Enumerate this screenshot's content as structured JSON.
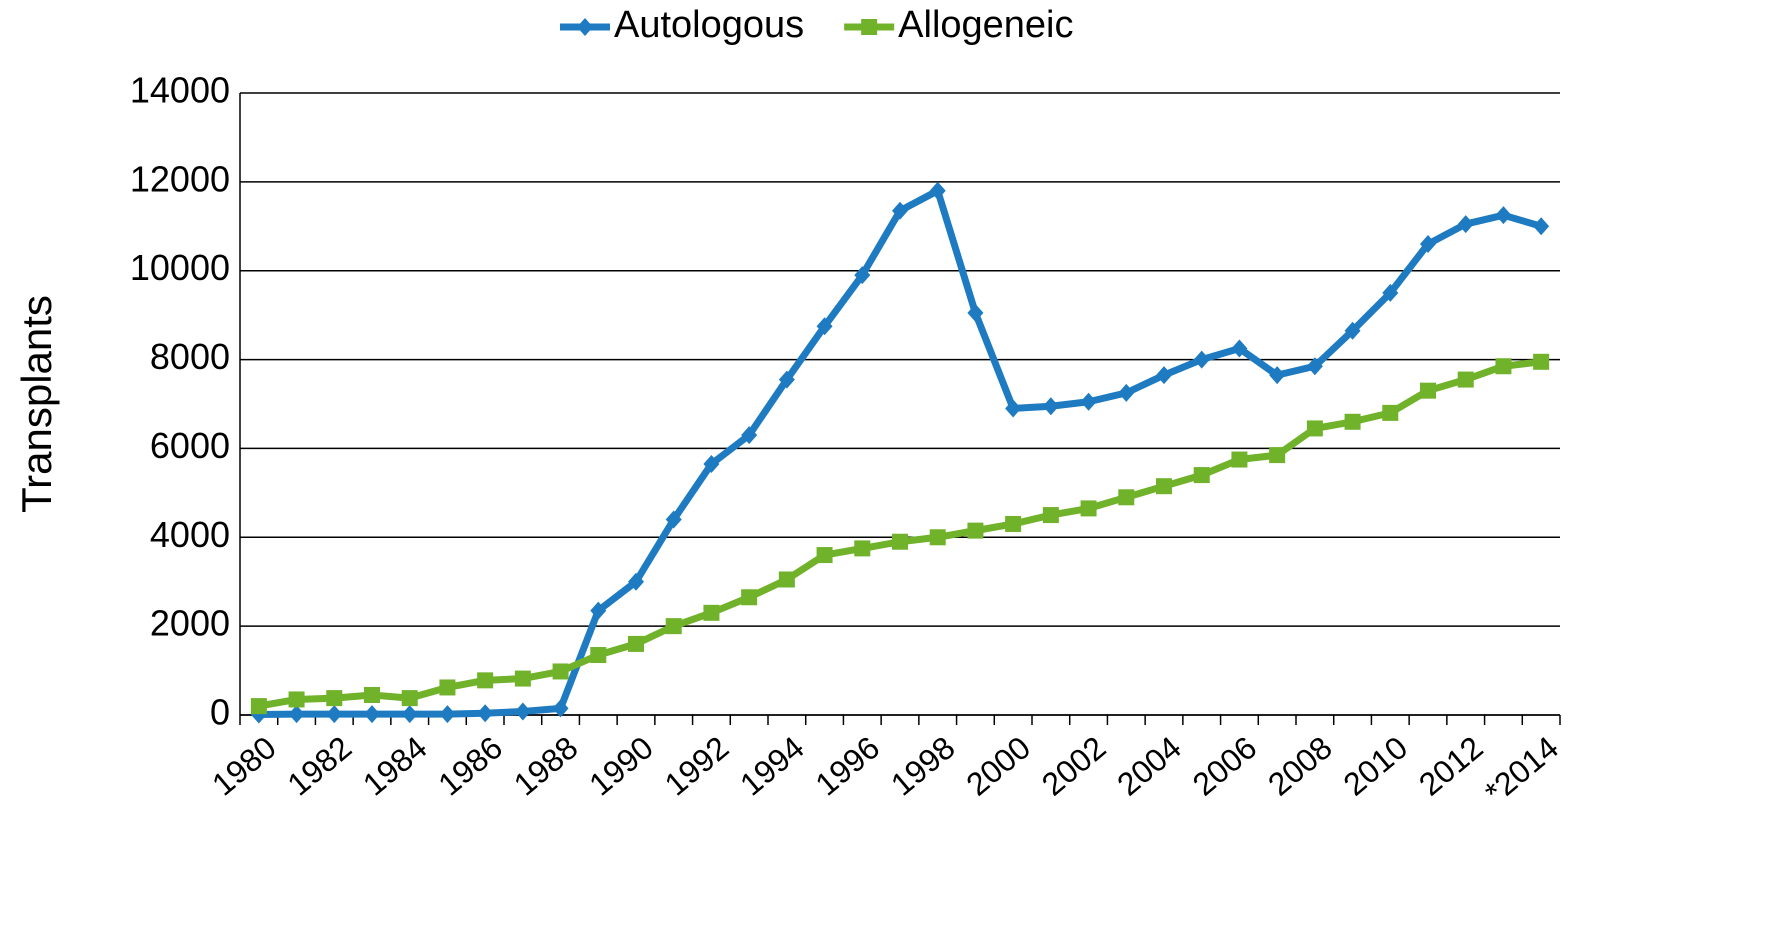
{
  "chart_data": {
    "type": "line",
    "categories": [
      "1980",
      null,
      "1982",
      null,
      "1984",
      null,
      "1986",
      null,
      "1988",
      null,
      "1990",
      null,
      "1992",
      null,
      "1994",
      null,
      "1996",
      null,
      "1998",
      null,
      "2000",
      null,
      "2002",
      null,
      "2004",
      null,
      "2006",
      null,
      "2008",
      null,
      "2010",
      null,
      "2012",
      null,
      "*2014"
    ],
    "series": [
      {
        "name": "Autologous",
        "color": "#1e7bc2",
        "marker": "diamond",
        "values": [
          10,
          20,
          20,
          20,
          20,
          20,
          40,
          80,
          150,
          2350,
          3000,
          4400,
          5650,
          6300,
          7550,
          8750,
          9900,
          11350,
          11800,
          9050,
          6900,
          6950,
          7050,
          7250,
          7650,
          8000,
          8250,
          7650,
          7850,
          8650,
          9500,
          10600,
          11050,
          11250,
          11000
        ]
      },
      {
        "name": "Allogeneic",
        "color": "#70b22a",
        "marker": "square",
        "values": [
          200,
          350,
          380,
          450,
          380,
          620,
          780,
          820,
          980,
          1350,
          1600,
          2000,
          2300,
          2650,
          3050,
          3600,
          3750,
          3900,
          4000,
          4150,
          4300,
          4500,
          4650,
          4900,
          5150,
          5400,
          5750,
          5850,
          6450,
          6600,
          6800,
          7300,
          7550,
          7850,
          7950
        ]
      }
    ],
    "y_label": "Transplants",
    "ylim": [
      0,
      14000
    ],
    "yticks": [
      0,
      2000,
      4000,
      6000,
      8000,
      10000,
      12000,
      14000
    ],
    "grid": true,
    "legend": "top"
  }
}
